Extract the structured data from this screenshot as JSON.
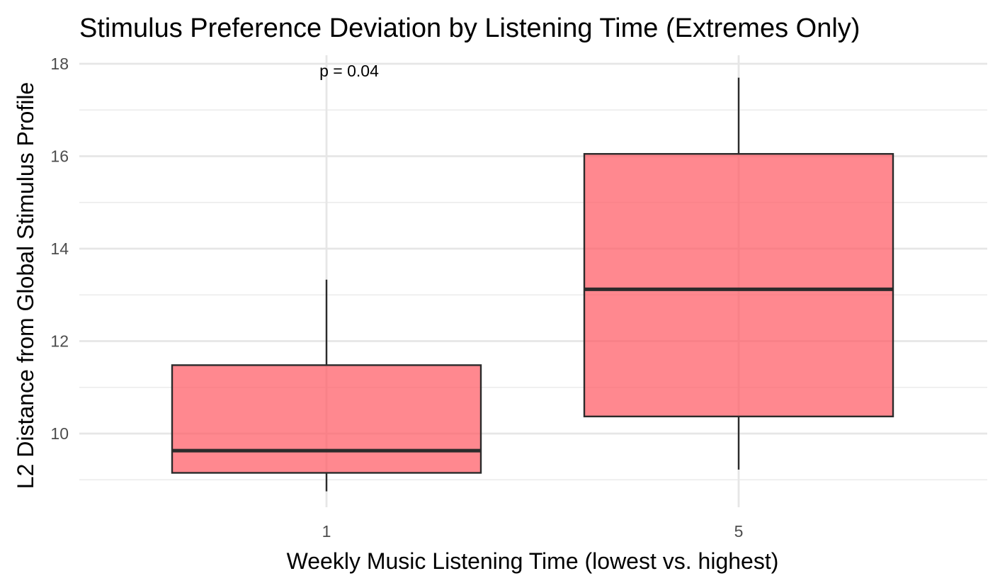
{
  "chart_data": {
    "type": "box",
    "title": "Stimulus Preference Deviation by Listening Time (Extremes Only)",
    "xlabel": "Weekly Music Listening Time (lowest vs. highest)",
    "ylabel": "L2 Distance from Global Stimulus Profile",
    "categories": [
      "1",
      "5"
    ],
    "yticks": [
      10,
      12,
      14,
      16,
      18
    ],
    "ylim": [
      8.4,
      18.2
    ],
    "grid": true,
    "fill_color": "#ff5a64",
    "fill_opacity": 0.72,
    "box_stroke": "#2b2b2b",
    "boxes": [
      {
        "category": "1",
        "whisker_low": 8.75,
        "q1": 9.15,
        "median": 9.63,
        "q3": 11.48,
        "whisker_high": 13.33
      },
      {
        "category": "5",
        "whisker_low": 9.22,
        "q1": 10.37,
        "median": 13.12,
        "q3": 16.05,
        "whisker_high": 17.7
      }
    ],
    "annotation": {
      "text": "p = 0.04",
      "x_category": "1",
      "y": 17.85
    }
  }
}
